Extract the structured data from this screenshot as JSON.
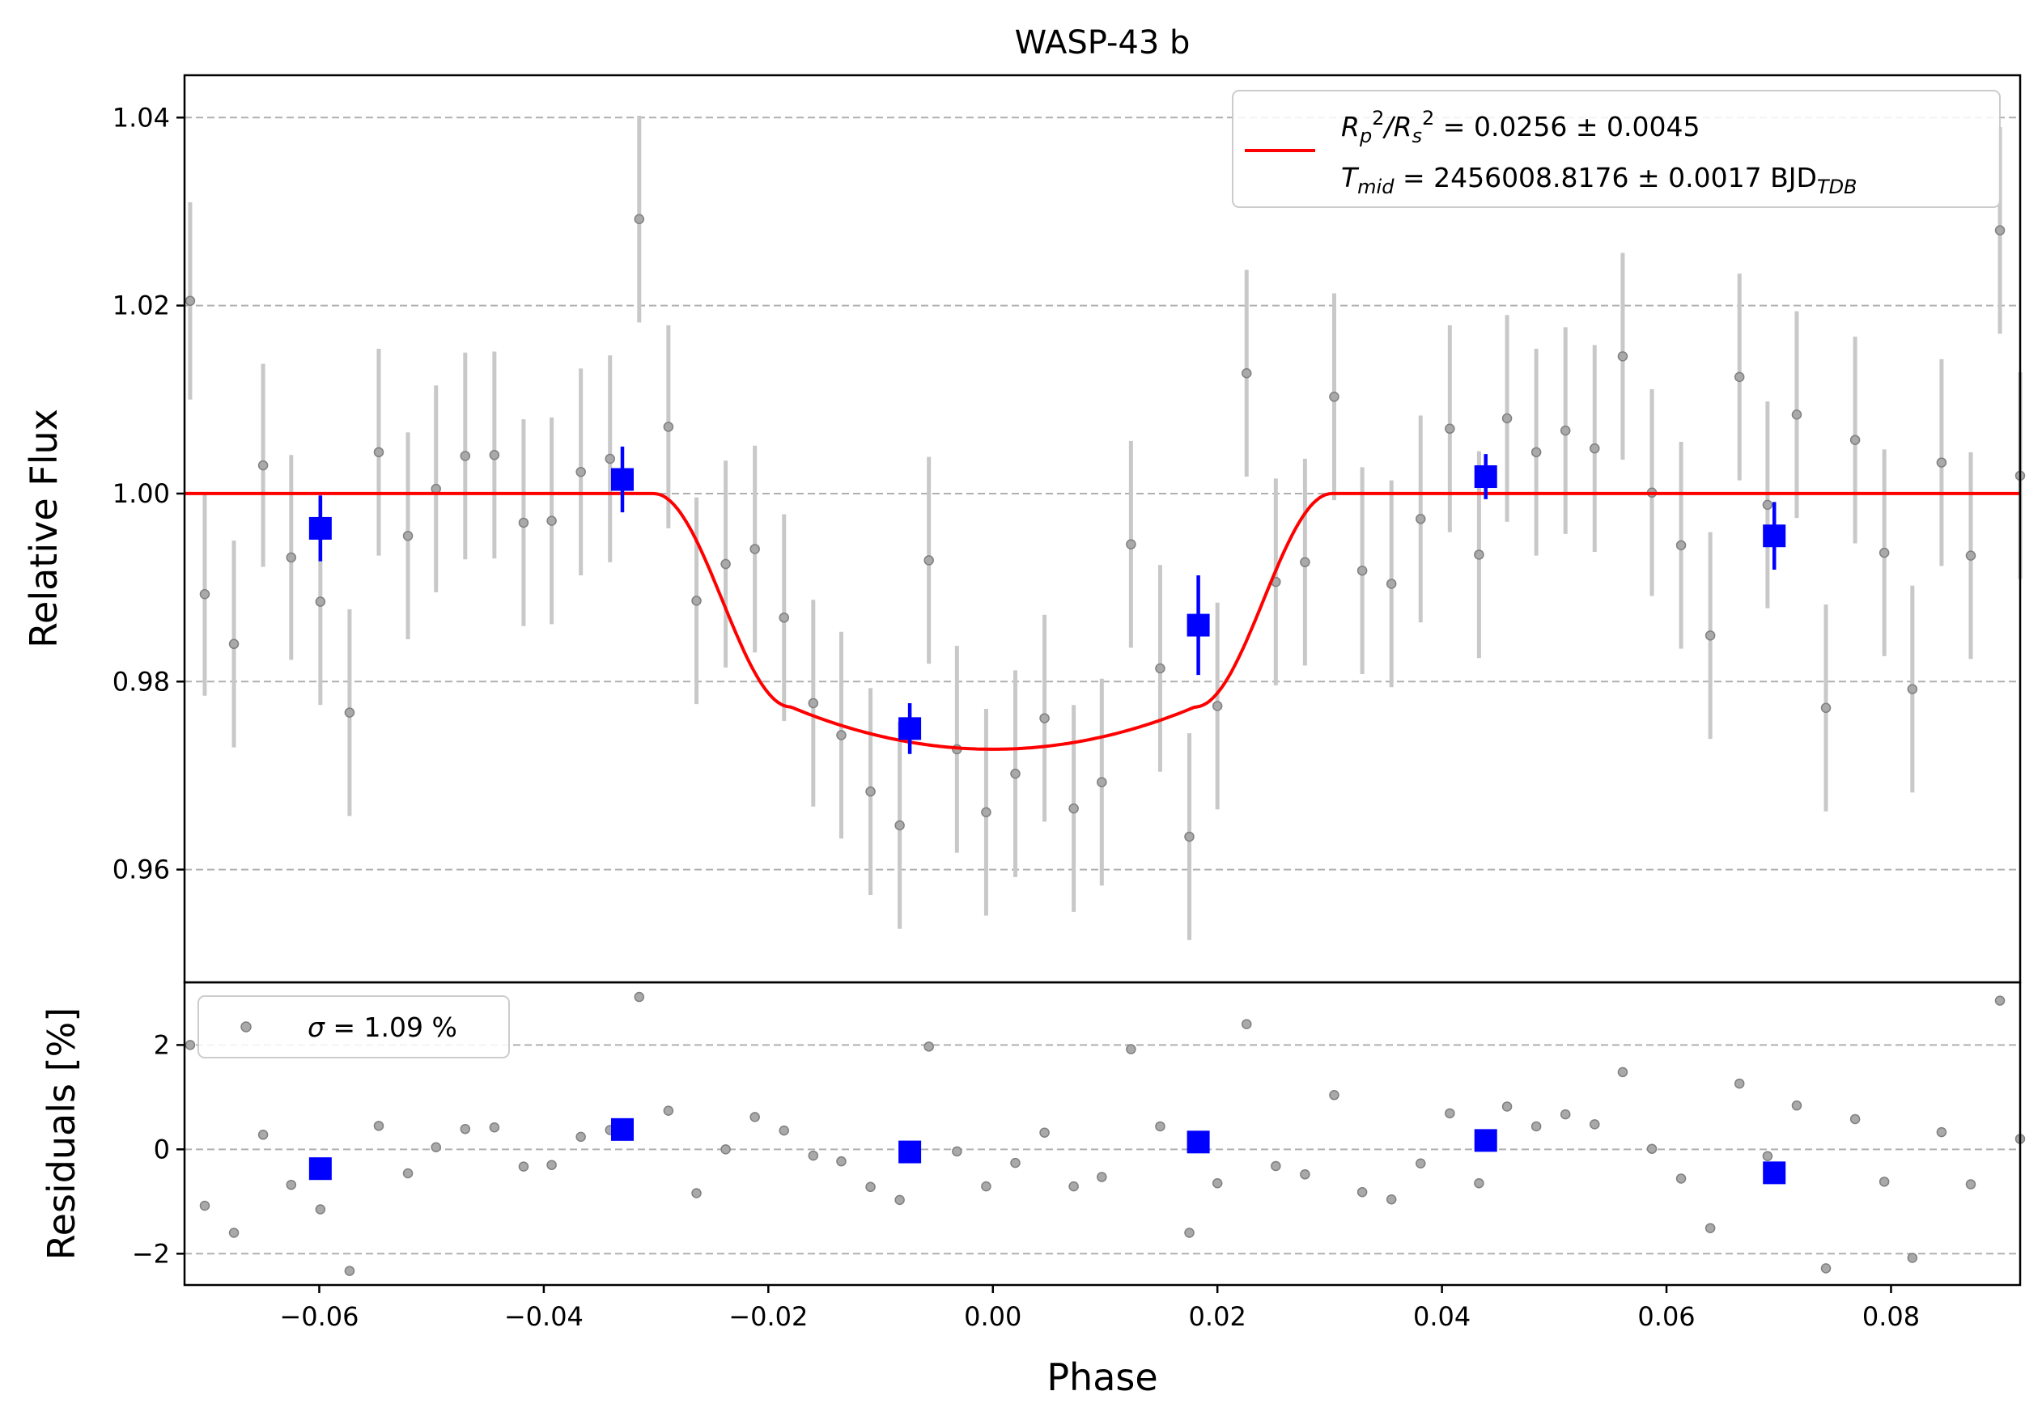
{
  "chart_data": [
    {
      "panel": "flux",
      "type": "scatter",
      "title": "WASP-43 b",
      "xlabel": "",
      "ylabel": "Relative Flux",
      "xlim": [
        -0.072,
        0.0915
      ],
      "ylim": [
        0.948,
        1.0445
      ],
      "yticks": [
        0.96,
        0.98,
        1.0,
        1.02,
        1.04
      ],
      "ytick_labels": [
        "0.96",
        "0.98",
        "1.00",
        "1.02",
        "1.04"
      ],
      "grid": "y-dashed",
      "legend_position": "top-right",
      "legend": {
        "line1": {
          "a": "R",
          "b": "p",
          "c": "2",
          "d": "/R",
          "e": "s",
          "f": "2",
          "g": " = 0.0256 ± 0.0045"
        },
        "line2": {
          "a": "T",
          "b": "mid",
          "c": " = 2456008.8176 ± 0.0017 BJD",
          "d": "TDB"
        }
      },
      "model": {
        "color": "#ff0000",
        "baseline": 1.0,
        "depth": 0.0272,
        "t1": -0.0302,
        "t2": -0.018,
        "t3": 0.018,
        "t4": 0.0302,
        "limb": 0.0045
      },
      "series": [
        {
          "role": "raw",
          "color": "#808080",
          "x": [
            -0.0715,
            -0.0702,
            -0.0676,
            -0.065,
            -0.0625,
            -0.0599,
            -0.0573,
            -0.0547,
            -0.0521,
            -0.0496,
            -0.047,
            -0.0444,
            -0.0418,
            -0.0393,
            -0.0367,
            -0.0341,
            -0.0315,
            -0.0289,
            -0.0264,
            -0.0238,
            -0.0212,
            -0.0186,
            -0.016,
            -0.0135,
            -0.0109,
            -0.0083,
            -0.0057,
            -0.0032,
            -0.0006,
            0.002,
            0.0046,
            0.0072,
            0.0097,
            0.0123,
            0.0149,
            0.0175,
            0.02,
            0.0226,
            0.0252,
            0.0278,
            0.0304,
            0.0329,
            0.0355,
            0.0381,
            0.0407,
            0.0433,
            0.0458,
            0.0484,
            0.051,
            0.0536,
            0.0561,
            0.0587,
            0.0613,
            0.0639,
            0.0665,
            0.069,
            0.0716,
            0.0742,
            0.0768,
            0.0794,
            0.0819,
            0.0845,
            0.0871,
            0.0897,
            0.0915
          ],
          "y": [
            1.0205,
            0.9893,
            0.984,
            1.003,
            0.9932,
            0.9885,
            0.9767,
            1.0044,
            0.9955,
            1.0005,
            1.004,
            1.0041,
            0.9969,
            0.9971,
            1.0023,
            1.0037,
            1.0292,
            1.0071,
            0.9886,
            0.9925,
            0.9941,
            0.9868,
            0.9777,
            0.9743,
            0.9683,
            0.9647,
            0.9929,
            0.9728,
            0.9661,
            0.9702,
            0.9761,
            0.9665,
            0.9693,
            0.9946,
            0.9814,
            0.9635,
            0.9774,
            1.0128,
            0.9906,
            0.9927,
            1.0103,
            0.9918,
            0.9904,
            0.9973,
            1.0069,
            0.9935,
            1.008,
            1.0044,
            1.0067,
            1.0048,
            1.0146,
            1.0001,
            0.9945,
            0.9849,
            1.0124,
            0.9988,
            1.0084,
            0.9772,
            1.0057,
            0.9937,
            0.9792,
            1.0033,
            0.9934,
            1.028,
            1.0019
          ],
          "yerr": [
            0.0105,
            0.0108,
            0.011,
            0.0108,
            0.0109,
            0.011,
            0.011,
            0.011,
            0.011,
            0.011,
            0.011,
            0.011,
            0.011,
            0.011,
            0.011,
            0.011,
            0.011,
            0.0108,
            0.011,
            0.011,
            0.011,
            0.011,
            0.011,
            0.011,
            0.011,
            0.011,
            0.011,
            0.011,
            0.011,
            0.011,
            0.011,
            0.011,
            0.011,
            0.011,
            0.011,
            0.011,
            0.011,
            0.011,
            0.011,
            0.011,
            0.011,
            0.011,
            0.011,
            0.011,
            0.011,
            0.011,
            0.011,
            0.011,
            0.011,
            0.011,
            0.011,
            0.011,
            0.011,
            0.011,
            0.011,
            0.011,
            0.011,
            0.011,
            0.011,
            0.011,
            0.011,
            0.011,
            0.011,
            0.011,
            0.011
          ]
        },
        {
          "role": "binned",
          "color": "#0000ff",
          "x": [
            -0.0599,
            -0.033,
            -0.0074,
            0.0183,
            0.0439,
            0.0696
          ],
          "y": [
            0.9963,
            1.0015,
            0.975,
            0.986,
            1.0018,
            0.9955
          ],
          "yerr": [
            0.0035,
            0.0035,
            0.0027,
            0.0053,
            0.0024,
            0.0036
          ]
        }
      ]
    },
    {
      "panel": "residuals",
      "type": "scatter",
      "xlabel": "Phase",
      "ylabel": "Residuals [%]",
      "xlim": [
        -0.072,
        0.0915
      ],
      "ylim": [
        -2.6,
        3.2
      ],
      "yticks": [
        -2,
        0,
        2
      ],
      "ytick_labels": [
        "−2",
        "0",
        "2"
      ],
      "xticks": [
        -0.06,
        -0.04,
        -0.02,
        0.0,
        0.02,
        0.04,
        0.06,
        0.08
      ],
      "xtick_labels": [
        "−0.06",
        "−0.04",
        "−0.02",
        "0.00",
        "0.02",
        "0.04",
        "0.06",
        "0.08"
      ],
      "grid": "y-dashed",
      "legend_position": "top-left",
      "legend": {
        "sigma": "σ",
        "text": " = 1.09 %"
      },
      "series": [
        {
          "role": "raw",
          "color": "#808080",
          "x": [
            -0.0715,
            -0.0702,
            -0.0676,
            -0.065,
            -0.0625,
            -0.0599,
            -0.0573,
            -0.0547,
            -0.0521,
            -0.0496,
            -0.047,
            -0.0444,
            -0.0418,
            -0.0393,
            -0.0367,
            -0.0341,
            -0.0315,
            -0.0289,
            -0.0264,
            -0.0238,
            -0.0212,
            -0.0186,
            -0.016,
            -0.0135,
            -0.0109,
            -0.0083,
            -0.0057,
            -0.0032,
            -0.0006,
            0.002,
            0.0046,
            0.0072,
            0.0097,
            0.0123,
            0.0149,
            0.0175,
            0.02,
            0.0226,
            0.0252,
            0.0278,
            0.0304,
            0.0329,
            0.0355,
            0.0381,
            0.0407,
            0.0433,
            0.0458,
            0.0484,
            0.051,
            0.0536,
            0.0561,
            0.0587,
            0.0613,
            0.0639,
            0.0665,
            0.069,
            0.0716,
            0.0742,
            0.0768,
            0.0794,
            0.0819,
            0.0845,
            0.0871,
            0.0897,
            0.0915
          ],
          "y": [
            2.0,
            -1.08,
            -1.6,
            0.28,
            -0.68,
            -1.15,
            -2.33,
            0.45,
            -0.46,
            0.04,
            0.39,
            0.42,
            -0.33,
            -0.3,
            0.24,
            0.37,
            2.92,
            0.74,
            -0.84,
            0.0,
            0.62,
            0.36,
            -0.12,
            -0.23,
            -0.72,
            -0.97,
            1.97,
            -0.04,
            -0.71,
            -0.26,
            0.32,
            -0.71,
            -0.53,
            1.92,
            0.44,
            -1.6,
            -0.65,
            2.4,
            -0.32,
            -0.48,
            1.04,
            -0.82,
            -0.96,
            -0.27,
            0.69,
            -0.65,
            0.82,
            0.44,
            0.67,
            0.48,
            1.48,
            0.01,
            -0.56,
            -1.51,
            1.26,
            -0.13,
            0.84,
            -2.28,
            0.58,
            -0.62,
            -2.08,
            0.33,
            -0.67,
            2.85,
            0.2
          ]
        },
        {
          "role": "binned",
          "color": "#0000ff",
          "x": [
            -0.0599,
            -0.033,
            -0.0074,
            0.0183,
            0.0439,
            0.0696
          ],
          "y": [
            -0.37,
            0.38,
            -0.05,
            0.14,
            0.17,
            -0.45
          ]
        }
      ]
    }
  ]
}
